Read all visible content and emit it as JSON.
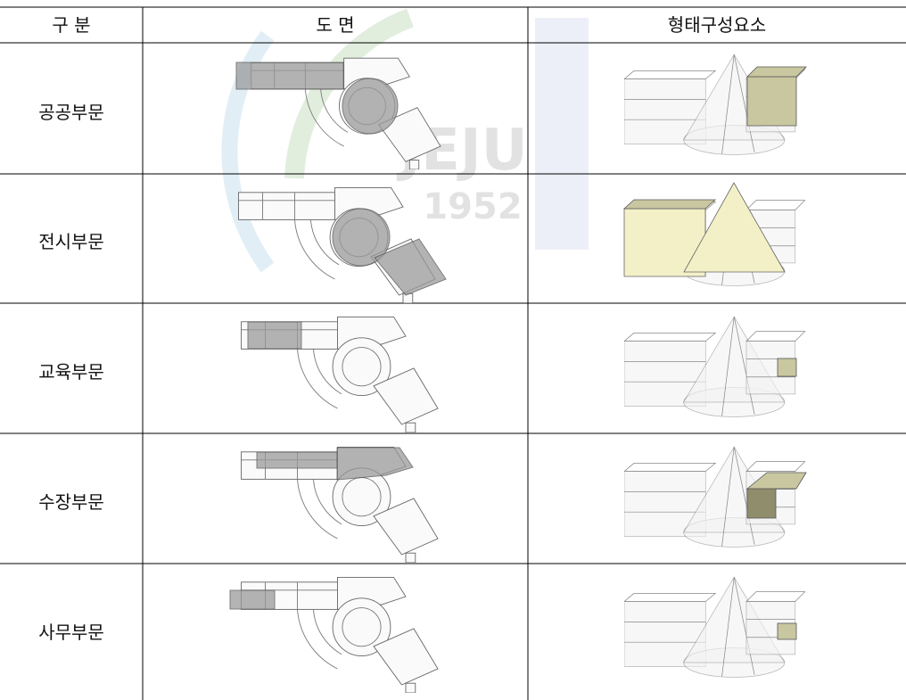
{
  "table": {
    "header": [
      "구 분",
      "도 면",
      "형태구성요소"
    ],
    "rows": [
      [
        "공공부문"
      ],
      [
        "전시부문"
      ],
      [
        "교육부문"
      ],
      [
        "수장부문"
      ],
      [
        "사무부문"
      ]
    ]
  },
  "watermark": {
    "text": "JEJU",
    "year": "1952"
  }
}
